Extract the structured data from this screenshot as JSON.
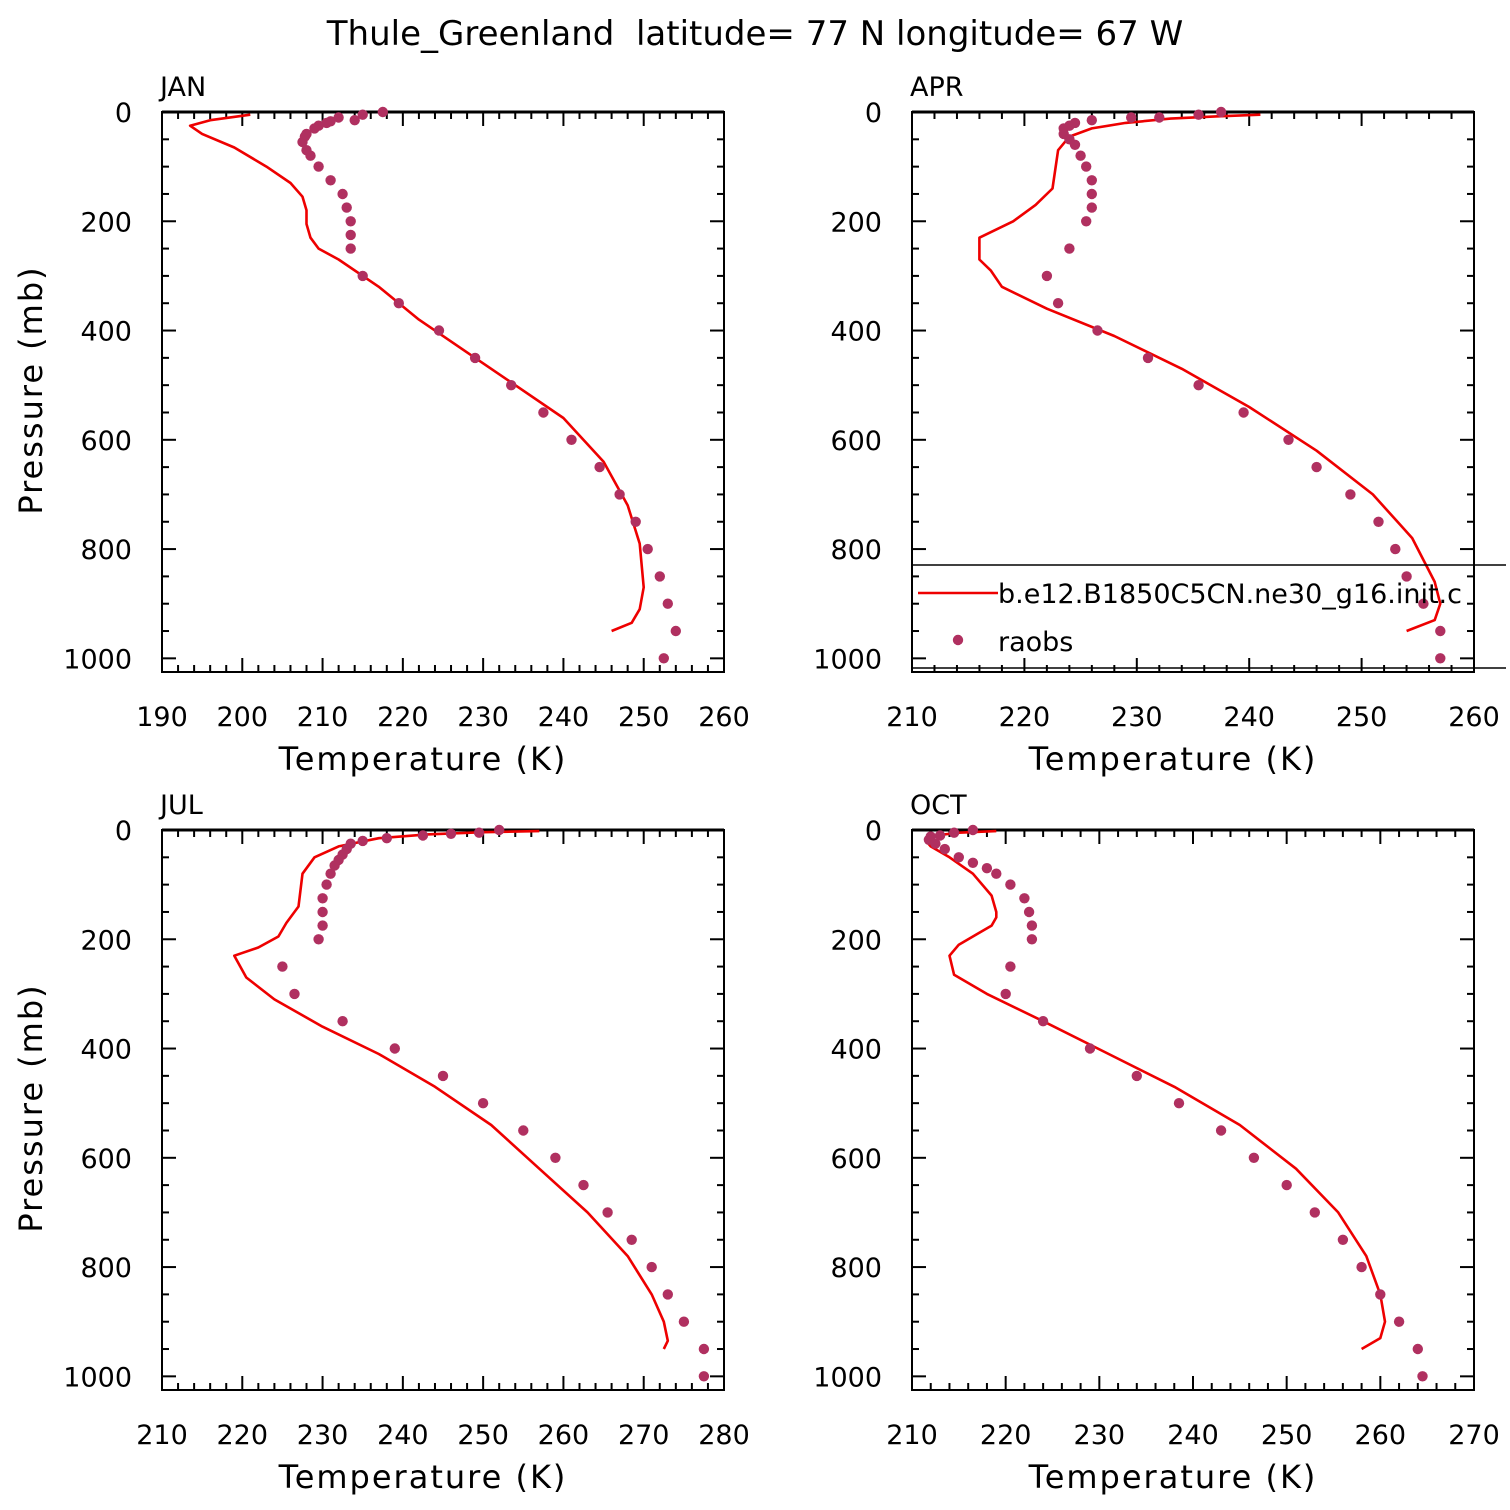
{
  "title": "Thule_Greenland  latitude= 77 N longitude= 67 W",
  "colors": {
    "model": "#ee0000",
    "obs": "#b03060"
  },
  "legend": {
    "model": "b.e12.B1850C5CN.ne30_g16.init.c",
    "obs": "raobs",
    "panel": 1,
    "placement": "lower-right"
  },
  "chart_data": [
    {
      "type": "line",
      "title": "JAN",
      "xlabel": "Temperature (K)",
      "ylabel": "Pressure (mb)",
      "xlim": [
        190,
        260
      ],
      "ylim": [
        1025,
        0
      ],
      "yinverted": true,
      "xticks": [
        190,
        200,
        210,
        220,
        230,
        240,
        250,
        260
      ],
      "yticks": [
        0,
        200,
        400,
        600,
        800,
        1000
      ],
      "series": [
        {
          "name": "b.e12.B1850C5CN.ne30_g16.init.c",
          "kind": "line",
          "x": [
            201,
            196,
            193.5,
            195,
            199,
            203,
            206,
            207.5,
            208,
            208,
            208.5,
            209.5,
            212,
            217,
            222,
            228,
            234,
            240,
            245,
            248,
            249.5,
            250,
            249.5,
            248.5,
            246
          ],
          "y": [
            5,
            15,
            25,
            40,
            65,
            100,
            130,
            155,
            180,
            205,
            230,
            250,
            270,
            320,
            380,
            440,
            500,
            560,
            640,
            720,
            790,
            870,
            910,
            935,
            950
          ]
        },
        {
          "name": "raobs",
          "kind": "scatter",
          "x": [
            217.5,
            215,
            212,
            214,
            211,
            210.5,
            209.5,
            209,
            208,
            207.8,
            207.5,
            208,
            208.5,
            209.5,
            211,
            212.5,
            213,
            213.5,
            213.5,
            213.5,
            215,
            219.5,
            224.5,
            229,
            233.5,
            237.5,
            241,
            244.5,
            247,
            249,
            250.5,
            252,
            253,
            254,
            252.5
          ],
          "y": [
            0,
            5,
            10,
            15,
            17,
            20,
            25,
            30,
            40,
            45,
            55,
            70,
            80,
            100,
            125,
            150,
            175,
            200,
            225,
            250,
            300,
            350,
            400,
            450,
            500,
            550,
            600,
            650,
            700,
            750,
            800,
            850,
            900,
            950,
            1000
          ]
        }
      ]
    },
    {
      "type": "line",
      "title": "APR",
      "xlabel": "Temperature (K)",
      "ylabel": "",
      "xlim": [
        210,
        260
      ],
      "ylim": [
        1025,
        0
      ],
      "yinverted": true,
      "xticks": [
        210,
        220,
        230,
        240,
        250,
        260
      ],
      "yticks": [
        0,
        200,
        400,
        600,
        800,
        1000
      ],
      "series": [
        {
          "name": "b.e12.B1850C5CN.ne30_g16.init.c",
          "kind": "line",
          "x": [
            241,
            237,
            233,
            229,
            226,
            224,
            223,
            222.5,
            221,
            219,
            216,
            216,
            217,
            218,
            222,
            228,
            234,
            240,
            246,
            251,
            254.5,
            256.5,
            257,
            256.5,
            254
          ],
          "y": [
            5,
            8,
            12,
            20,
            30,
            45,
            70,
            140,
            170,
            200,
            230,
            270,
            290,
            320,
            360,
            410,
            470,
            540,
            620,
            700,
            780,
            860,
            900,
            930,
            950
          ]
        },
        {
          "name": "raobs",
          "kind": "scatter",
          "x": [
            237.5,
            235.5,
            232,
            229.5,
            226,
            224.5,
            224,
            223.5,
            223.5,
            224,
            224.5,
            225,
            225.5,
            226,
            226,
            226,
            225.5,
            224,
            222,
            223,
            226.5,
            231,
            235.5,
            239.5,
            243.5,
            246,
            249,
            251.5,
            253,
            254,
            255.5,
            257,
            257
          ],
          "y": [
            0,
            5,
            10,
            10,
            15,
            20,
            25,
            30,
            40,
            50,
            60,
            80,
            100,
            125,
            150,
            175,
            200,
            250,
            300,
            350,
            400,
            450,
            500,
            550,
            600,
            650,
            700,
            750,
            800,
            850,
            900,
            950,
            1000
          ]
        }
      ]
    },
    {
      "type": "line",
      "title": "JUL",
      "xlabel": "Temperature (K)",
      "ylabel": "Pressure (mb)",
      "xlim": [
        210,
        280
      ],
      "ylim": [
        1025,
        0
      ],
      "yinverted": true,
      "xticks": [
        210,
        220,
        230,
        240,
        250,
        260,
        270,
        280
      ],
      "yticks": [
        0,
        200,
        400,
        600,
        800,
        1000
      ],
      "series": [
        {
          "name": "b.e12.B1850C5CN.ne30_g16.init.c",
          "kind": "line",
          "x": [
            257,
            250,
            243,
            237,
            232,
            229,
            227.5,
            227,
            225.5,
            224.5,
            222,
            219,
            220.5,
            224,
            230,
            237,
            244,
            251,
            257,
            263,
            268,
            271,
            272.5,
            273,
            272.5
          ],
          "y": [
            2,
            4,
            8,
            15,
            30,
            50,
            80,
            140,
            170,
            195,
            215,
            230,
            270,
            310,
            360,
            410,
            470,
            540,
            620,
            700,
            780,
            850,
            900,
            935,
            950
          ]
        },
        {
          "name": "raobs",
          "kind": "scatter",
          "x": [
            252,
            249.5,
            246,
            242.5,
            238,
            235,
            233.5,
            233,
            232.5,
            232,
            231.5,
            231,
            230.5,
            230,
            230,
            230,
            229.5,
            225,
            226.5,
            232.5,
            239,
            245,
            250,
            255,
            259,
            262.5,
            265.5,
            268.5,
            271,
            273,
            275,
            277.5,
            277.5
          ],
          "y": [
            0,
            5,
            7,
            10,
            15,
            20,
            25,
            35,
            45,
            55,
            65,
            80,
            100,
            125,
            150,
            175,
            200,
            250,
            300,
            350,
            400,
            450,
            500,
            550,
            600,
            650,
            700,
            750,
            800,
            850,
            900,
            950,
            1000
          ]
        }
      ]
    },
    {
      "type": "line",
      "title": "OCT",
      "xlabel": "Temperature (K)",
      "ylabel": "",
      "xlim": [
        210,
        270
      ],
      "ylim": [
        1025,
        0
      ],
      "yinverted": true,
      "xticks": [
        210,
        220,
        230,
        240,
        250,
        260,
        270
      ],
      "yticks": [
        0,
        200,
        400,
        600,
        800,
        1000
      ],
      "series": [
        {
          "name": "b.e12.B1850C5CN.ne30_g16.init.c",
          "kind": "line",
          "x": [
            219,
            215,
            212.5,
            211.5,
            212,
            214,
            216.5,
            218.5,
            219,
            219,
            218.5,
            217,
            215,
            214,
            214.5,
            218,
            224,
            231,
            238,
            245,
            251,
            255.5,
            258.5,
            260,
            260.5,
            260,
            258
          ],
          "y": [
            2,
            5,
            10,
            20,
            30,
            50,
            80,
            120,
            150,
            160,
            175,
            190,
            210,
            230,
            265,
            300,
            350,
            410,
            470,
            540,
            620,
            700,
            780,
            850,
            900,
            930,
            950
          ]
        },
        {
          "name": "raobs",
          "kind": "scatter",
          "x": [
            216.5,
            214.5,
            213,
            212,
            211.8,
            212.5,
            213.5,
            215,
            216.5,
            218,
            219,
            220.5,
            222,
            222.5,
            222.8,
            222.8,
            220.5,
            220,
            224,
            229,
            234,
            238.5,
            243,
            246.5,
            250,
            253,
            256,
            258,
            260,
            262,
            264,
            264.5
          ],
          "y": [
            0,
            5,
            10,
            12,
            18,
            25,
            35,
            50,
            60,
            70,
            80,
            100,
            125,
            150,
            175,
            200,
            250,
            300,
            350,
            400,
            450,
            500,
            550,
            600,
            650,
            700,
            750,
            800,
            850,
            900,
            950,
            1000
          ]
        }
      ]
    }
  ]
}
